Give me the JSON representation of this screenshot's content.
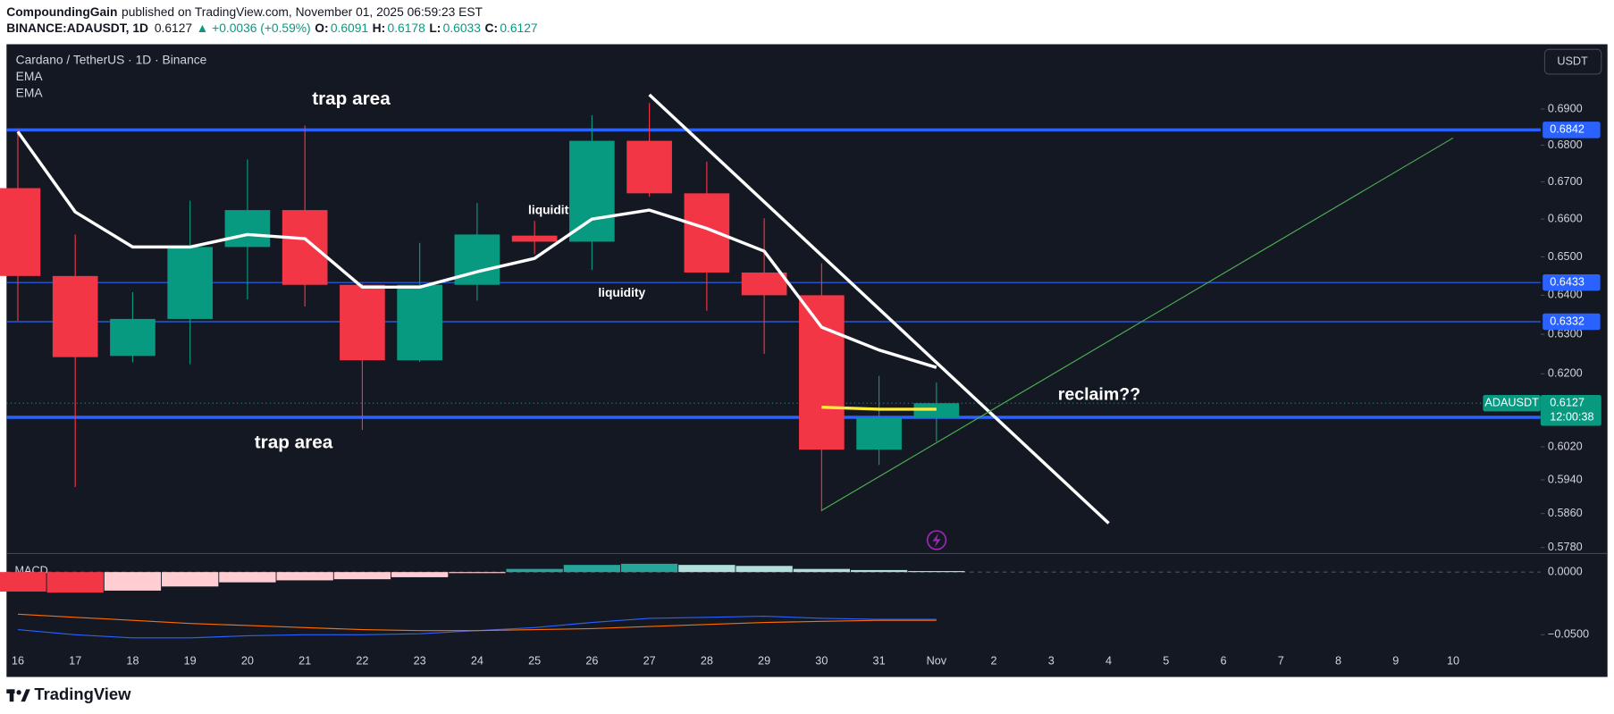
{
  "header": {
    "author": "CompoundingGain",
    "published": "published on TradingView.com, November 01, 2025 06:59:23 EST",
    "symbol": "BINANCE:ADAUSDT, 1D",
    "last": "0.6127",
    "change": "▲ +0.0036 (+0.59%)",
    "ohlc": [
      {
        "key": "O:",
        "value": "0.6091"
      },
      {
        "key": "H:",
        "value": "0.6178"
      },
      {
        "key": "L:",
        "value": "0.6033"
      },
      {
        "key": "C:",
        "value": "0.6127"
      }
    ]
  },
  "chart_data": [
    {
      "type": "candlestick",
      "title": "Cardano / TetherUS · 1D · Binance",
      "currency": "USDT",
      "categories": [
        "16",
        "17",
        "18",
        "19",
        "20",
        "21",
        "22",
        "23",
        "24",
        "25",
        "26",
        "27",
        "28",
        "29",
        "30",
        "31",
        "Nov",
        "2",
        "3",
        "4",
        "5",
        "6",
        "7",
        "8",
        "9",
        "10"
      ],
      "open": [
        0.6683,
        0.645,
        0.6245,
        0.6339,
        0.6526,
        0.6624,
        0.6427,
        0.6234,
        0.6427,
        0.6556,
        0.654,
        0.6812,
        0.6669,
        0.6459,
        0.64,
        0.6013,
        0.6091,
        null,
        null,
        null,
        null,
        null,
        null,
        null,
        null,
        null
      ],
      "high": [
        0.6846,
        0.6559,
        0.6408,
        0.6649,
        0.6761,
        0.6854,
        0.643,
        0.6537,
        0.6643,
        0.6595,
        0.6883,
        0.6917,
        0.6755,
        0.6602,
        0.6483,
        0.6195,
        0.6178,
        null,
        null,
        null,
        null,
        null,
        null,
        null,
        null,
        null
      ],
      "low": [
        0.6334,
        0.5923,
        0.6229,
        0.6224,
        0.6389,
        0.6371,
        0.6061,
        0.623,
        0.6386,
        0.6507,
        0.6466,
        0.666,
        0.636,
        0.625,
        0.5865,
        0.5976,
        0.6033,
        null,
        null,
        null,
        null,
        null,
        null,
        null,
        null,
        null
      ],
      "close": [
        0.645,
        0.6242,
        0.6339,
        0.6526,
        0.6624,
        0.6427,
        0.6234,
        0.6427,
        0.6559,
        0.654,
        0.6812,
        0.6669,
        0.6459,
        0.64,
        0.6013,
        0.6091,
        0.6127,
        null,
        null,
        null,
        null,
        null,
        null,
        null,
        null,
        null
      ],
      "up_color": "#089981",
      "down_color": "#f23645",
      "series": [
        {
          "name": "EMA",
          "color": "#ffffff",
          "values": [
            0.6837,
            0.6619,
            0.6526,
            0.6526,
            0.6559,
            0.6548,
            0.6421,
            0.6421,
            0.6461,
            0.6496,
            0.66,
            0.6624,
            0.6575,
            0.6515,
            0.6318,
            0.626,
            0.6216,
            null,
            null,
            null,
            null,
            null,
            null,
            null,
            null,
            null
          ]
        },
        {
          "name": "EMA",
          "color": "#ffeb3b",
          "values": [
            null,
            null,
            null,
            null,
            null,
            null,
            null,
            null,
            null,
            null,
            null,
            null,
            null,
            null,
            0.6117,
            0.6112,
            0.6112,
            null,
            null,
            null,
            null,
            null,
            null,
            null,
            null,
            null
          ]
        }
      ],
      "log_scale": true,
      "ylim": [
        0.5766,
        0.708
      ],
      "yticks": [
        {
          "value": 0.69,
          "label": "0.6900"
        },
        {
          "value": 0.68,
          "label": "0.6800"
        },
        {
          "value": 0.67,
          "label": "0.6700"
        },
        {
          "value": 0.66,
          "label": "0.6600"
        },
        {
          "value": 0.65,
          "label": "0.6500"
        },
        {
          "value": 0.64,
          "label": "0.6400"
        },
        {
          "value": 0.63,
          "label": "0.6300"
        },
        {
          "value": 0.62,
          "label": "0.6200"
        },
        {
          "value": 0.602,
          "label": "0.6020"
        },
        {
          "value": 0.594,
          "label": "0.5940"
        },
        {
          "value": 0.586,
          "label": "0.5860"
        },
        {
          "value": 0.578,
          "label": "0.5780"
        }
      ],
      "grid": false,
      "levels": [
        {
          "value": 0.6842,
          "color": "#2962ff",
          "width": 3
        },
        {
          "value": 0.6433,
          "color": "#2962ff",
          "width": 1
        },
        {
          "value": 0.6332,
          "color": "#2962ff",
          "width": 1
        },
        {
          "value": 0.6092,
          "color": "#2962ff",
          "width": 3
        }
      ],
      "last_price": {
        "symbol": "ADAUSDT",
        "value": 0.6127,
        "countdown": "12:00:38",
        "color": "#089981"
      },
      "trendlines": [
        {
          "color": "#ffffff",
          "x": [
            "27",
            "4"
          ],
          "y": [
            0.694,
            0.5837
          ]
        },
        {
          "color": "#4caf50",
          "x": [
            "30",
            "10"
          ],
          "y": [
            0.5867,
            0.682
          ]
        }
      ],
      "annotations": [
        "trap area",
        "trap area",
        "liquidity",
        "liquidity",
        "reclaim??"
      ]
    },
    {
      "type": "macd",
      "title": "MACD",
      "histogram": {
        "values": [
          -0.0156,
          -0.0164,
          -0.0148,
          -0.0115,
          -0.0082,
          -0.0066,
          -0.0057,
          -0.0041,
          -0.0008,
          0.0025,
          0.0057,
          0.0066,
          0.0057,
          0.0049,
          0.0025,
          0.0016,
          0.0008,
          null,
          null,
          null,
          null,
          null,
          null,
          null,
          null,
          null
        ],
        "colors": [
          "#f23645",
          "#f23645",
          "#ffcdd2",
          "#ffcdd2",
          "#ffcdd2",
          "#ffcdd2",
          "#ffcdd2",
          "#ffcdd2",
          "#ffcdd2",
          "#26a69a",
          "#26a69a",
          "#26a69a",
          "#b2dfdb",
          "#b2dfdb",
          "#b2dfdb",
          "#b2dfdb",
          "#b2dfdb",
          null,
          null,
          null,
          null,
          null,
          null,
          null,
          null,
          null
        ]
      },
      "series": [
        {
          "color": "#2962ff",
          "values": [
            -0.0459,
            -0.05,
            -0.0525,
            -0.0525,
            -0.0508,
            -0.05,
            -0.05,
            -0.0492,
            -0.0467,
            -0.0443,
            -0.0402,
            -0.0369,
            -0.0361,
            -0.0352,
            -0.0369,
            -0.0377,
            -0.0377,
            null,
            null,
            null,
            null,
            null,
            null,
            null,
            null,
            null
          ]
        },
        {
          "color": "#ff6d00",
          "values": [
            -0.0336,
            -0.0361,
            -0.0385,
            -0.041,
            -0.0426,
            -0.0443,
            -0.0459,
            -0.0467,
            -0.0467,
            -0.0459,
            -0.0451,
            -0.0434,
            -0.0418,
            -0.0402,
            -0.0393,
            -0.0385,
            -0.0385,
            null,
            null,
            null,
            null,
            null,
            null,
            null,
            null,
            null
          ]
        }
      ],
      "ylim": [
        -0.0689,
        0.0148
      ],
      "yticks": [
        {
          "value": 0,
          "label": "0.0000"
        },
        {
          "value": -0.05,
          "label": "−0.0500"
        }
      ]
    }
  ],
  "footer": {
    "brand": "TradingView"
  }
}
